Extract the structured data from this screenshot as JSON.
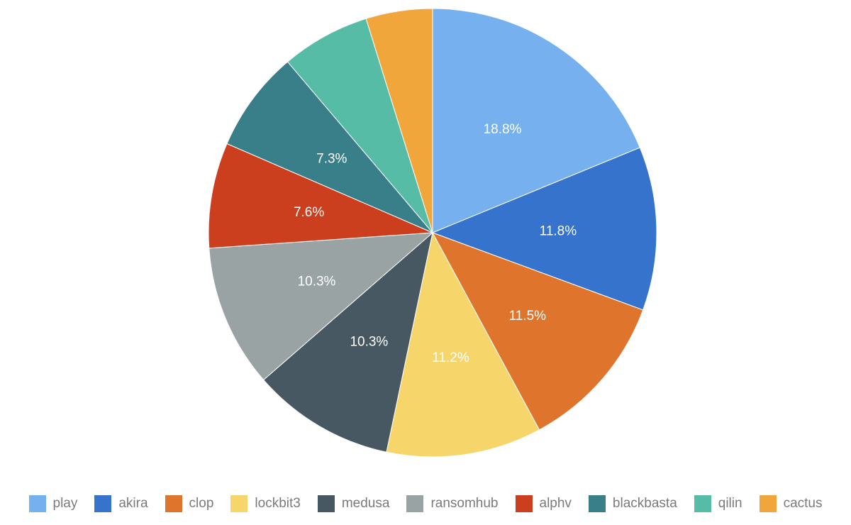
{
  "chart_data": {
    "type": "pie",
    "title": "",
    "legend_position": "bottom",
    "slices": [
      {
        "name": "play",
        "value": 18.8,
        "label": "18.8%",
        "color": "#76b0ee"
      },
      {
        "name": "akira",
        "value": 11.8,
        "label": "11.8%",
        "color": "#3673cc"
      },
      {
        "name": "clop",
        "value": 11.5,
        "label": "11.5%",
        "color": "#df742c"
      },
      {
        "name": "lockbit3",
        "value": 11.2,
        "label": "11.2%",
        "color": "#f6d56b"
      },
      {
        "name": "medusa",
        "value": 10.3,
        "label": "10.3%",
        "color": "#485862"
      },
      {
        "name": "ransomhub",
        "value": 10.3,
        "label": "10.3%",
        "color": "#99a3a4"
      },
      {
        "name": "alphv",
        "value": 7.6,
        "label": "7.6%",
        "color": "#cb3f1f"
      },
      {
        "name": "blackbasta",
        "value": 7.3,
        "label": "7.3%",
        "color": "#387f8a"
      },
      {
        "name": "qilin",
        "value": 6.4,
        "label": "",
        "color": "#56bca6"
      },
      {
        "name": "cactus",
        "value": 4.8,
        "label": "",
        "color": "#f0a63a"
      }
    ]
  }
}
